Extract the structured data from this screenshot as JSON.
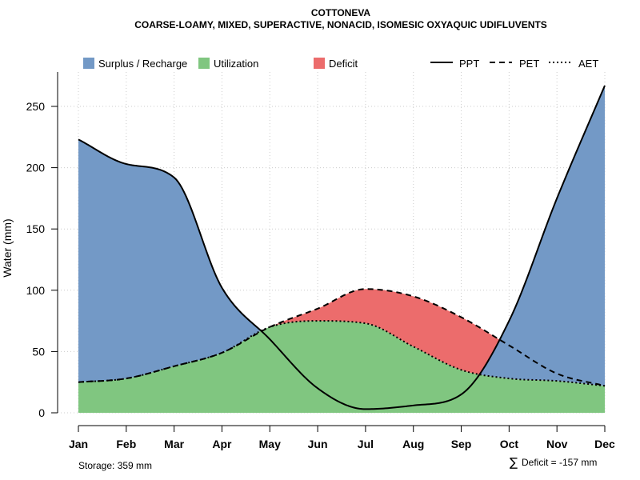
{
  "title": "COTTONEVA",
  "subtitle": "COARSE-LOAMY, MIXED, SUPERACTIVE, NONACID, ISOMESIC OXYAQUIC UDIFLUVENTS",
  "footer": {
    "storage": "Storage: 359 mm",
    "deficit_symbol": "∑",
    "deficit": "Deficit = -157 mm"
  },
  "colors": {
    "surplus": "#7399C6",
    "utilization": "#80C680",
    "deficit": "#EC6C6C",
    "grid": "#cccccc",
    "line": "#000000"
  },
  "legend": {
    "fills": [
      {
        "label": "Surplus / Recharge",
        "key": "surplus"
      },
      {
        "label": "Utilization",
        "key": "utilization"
      },
      {
        "label": "Deficit",
        "key": "deficit"
      }
    ],
    "lines": [
      {
        "label": "PPT",
        "style": "solid"
      },
      {
        "label": "PET",
        "style": "dashed"
      },
      {
        "label": "AET",
        "style": "dotted"
      }
    ]
  },
  "chart_data": {
    "type": "area",
    "title": "COTTONEVA",
    "subtitle": "COARSE-LOAMY, MIXED, SUPERACTIVE, NONACID, ISOMESIC OXYAQUIC UDIFLUVENTS",
    "xlabel": "",
    "ylabel": "Water (mm)",
    "ylim": [
      0,
      275
    ],
    "yticks": [
      0,
      50,
      100,
      150,
      200,
      250
    ],
    "grid": true,
    "legend_position": "top",
    "categories": [
      "Jan",
      "Feb",
      "Mar",
      "Apr",
      "May",
      "Jun",
      "Jul",
      "Aug",
      "Sep",
      "Oct",
      "Nov",
      "Dec"
    ],
    "series": [
      {
        "name": "PPT",
        "style": "solid",
        "values": [
          223,
          203,
          192,
          102,
          60,
          20,
          3,
          6,
          15,
          75,
          175,
          267
        ]
      },
      {
        "name": "PET",
        "style": "dashed",
        "values": [
          25,
          28,
          38,
          49,
          70,
          85,
          101,
          95,
          78,
          55,
          32,
          22
        ]
      },
      {
        "name": "AET",
        "style": "dotted",
        "values": [
          25,
          28,
          38,
          49,
          70,
          75,
          73,
          54,
          35,
          28,
          26,
          22
        ]
      }
    ],
    "areas": [
      {
        "name": "Surplus / Recharge",
        "between": [
          "AET",
          "PPT"
        ],
        "where": "PPT > AET"
      },
      {
        "name": "Utilization",
        "between": [
          "0",
          "AET"
        ]
      },
      {
        "name": "Deficit",
        "between": [
          "AET",
          "PET"
        ],
        "where": "PET > AET"
      }
    ]
  }
}
